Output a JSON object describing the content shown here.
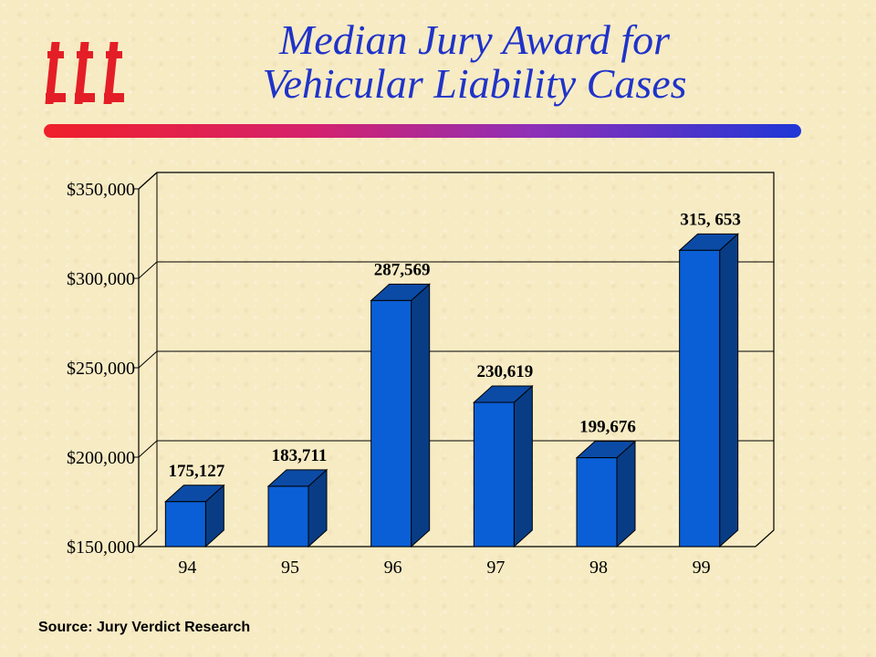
{
  "logo": {
    "icon": "iii-logo",
    "color": "#e41e26"
  },
  "header": {
    "title_line1": "Median Jury Award for",
    "title_line2": "Vehicular Liability Cases"
  },
  "footer": {
    "source": "Source:  Jury Verdict Research"
  },
  "colors": {
    "title": "#1f33c9",
    "bar_front": "#0a5fd6",
    "bar_top": "#0b4ba6",
    "bar_side": "#083d86",
    "rule_left": "#f0202a",
    "rule_right": "#1f37d6"
  },
  "chart_data": {
    "type": "bar",
    "categories": [
      "94",
      "95",
      "96",
      "97",
      "98",
      "99"
    ],
    "values": [
      175127,
      183711,
      287569,
      230619,
      199676,
      315653
    ],
    "data_labels": [
      "175,127",
      "183,711",
      "287,569",
      "230,619",
      "199,676",
      "315, 653"
    ],
    "ylim": [
      150000,
      350000
    ],
    "yticks": [
      150000,
      200000,
      250000,
      300000,
      350000
    ],
    "ytick_labels": [
      "$150,000",
      "$200,000",
      "$250,000",
      "$300,000",
      "$350,000"
    ],
    "grid": true,
    "style": "3d"
  }
}
